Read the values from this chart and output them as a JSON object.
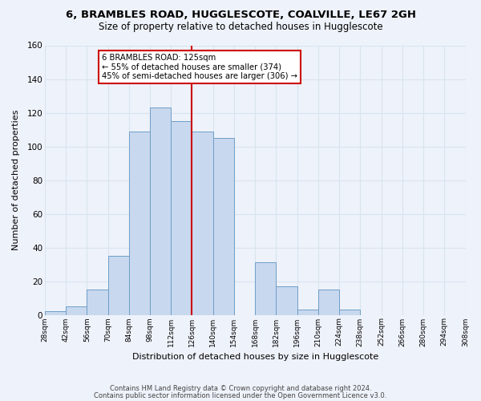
{
  "title": "6, BRAMBLES ROAD, HUGGLESCOTE, COALVILLE, LE67 2GH",
  "subtitle": "Size of property relative to detached houses in Hugglescote",
  "xlabel": "Distribution of detached houses by size in Hugglescote",
  "ylabel": "Number of detached properties",
  "footnote1": "Contains HM Land Registry data © Crown copyright and database right 2024.",
  "footnote2": "Contains public sector information licensed under the Open Government Licence v3.0.",
  "bar_edges": [
    28,
    42,
    56,
    70,
    84,
    98,
    112,
    126,
    140,
    154,
    168,
    182,
    196,
    210,
    224,
    238,
    252,
    266,
    280,
    294,
    308
  ],
  "bar_heights": [
    2,
    5,
    15,
    35,
    109,
    123,
    115,
    109,
    105,
    0,
    31,
    17,
    3,
    15,
    3,
    0,
    0,
    0,
    0,
    0
  ],
  "property_line_x": 126,
  "bar_color": "#c8d8ee",
  "bar_edge_color": "#6e9ec8",
  "line_color": "#cc0000",
  "annotation_line1": "6 BRAMBLES ROAD: 125sqm",
  "annotation_line2": "← 55% of detached houses are smaller (374)",
  "annotation_line3": "45% of semi-detached houses are larger (306) →",
  "annotation_box_color": "#ffffff",
  "annotation_box_edge": "#cc0000",
  "ylim": [
    0,
    160
  ],
  "tick_labels": [
    "28sqm",
    "42sqm",
    "56sqm",
    "70sqm",
    "84sqm",
    "98sqm",
    "112sqm",
    "126sqm",
    "140sqm",
    "154sqm",
    "168sqm",
    "182sqm",
    "196sqm",
    "210sqm",
    "224sqm",
    "238sqm",
    "252sqm",
    "266sqm",
    "280sqm",
    "294sqm",
    "308sqm"
  ],
  "grid_color": "#d8e4f0",
  "background_color": "#eef2fa"
}
